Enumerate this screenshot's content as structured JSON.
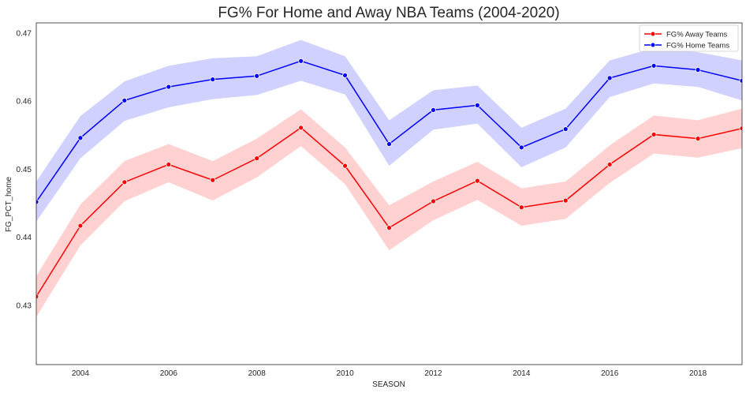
{
  "chart_data": {
    "type": "line",
    "title": "FG% For Home and Away NBA Teams (2004-2020)",
    "xlabel": "SEASON",
    "ylabel": "FG_PCT_home",
    "xlim": [
      2003,
      2019
    ],
    "ylim": [
      0.4213,
      0.4715
    ],
    "xticks": [
      2004,
      2006,
      2008,
      2010,
      2012,
      2014,
      2016,
      2018
    ],
    "yticks": [
      0.43,
      0.44,
      0.45,
      0.46,
      0.47
    ],
    "ytick_labels": [
      "0.43",
      "0.44",
      "0.45",
      "0.46",
      "0.47"
    ],
    "grid": false,
    "legend_position": "top-right",
    "x": [
      2003,
      2004,
      2005,
      2006,
      2007,
      2008,
      2009,
      2010,
      2011,
      2012,
      2013,
      2014,
      2015,
      2016,
      2017,
      2018,
      2019
    ],
    "series": [
      {
        "name": "FG% Away Teams",
        "color": "#ff0000",
        "band_color": "#ffcccc",
        "values": [
          0.4313,
          0.4417,
          0.4481,
          0.4507,
          0.4484,
          0.4516,
          0.4561,
          0.4505,
          0.4414,
          0.4453,
          0.4483,
          0.4444,
          0.4454,
          0.4507,
          0.4551,
          0.4545,
          0.456
        ],
        "ci_low": [
          0.4283,
          0.4388,
          0.4453,
          0.4481,
          0.4454,
          0.4488,
          0.4534,
          0.4478,
          0.4381,
          0.4425,
          0.4455,
          0.4417,
          0.4427,
          0.448,
          0.4523,
          0.4517,
          0.4531
        ],
        "ci_high": [
          0.4343,
          0.4448,
          0.4512,
          0.4537,
          0.4512,
          0.4545,
          0.4588,
          0.4532,
          0.4447,
          0.4482,
          0.4511,
          0.4472,
          0.4482,
          0.4535,
          0.4579,
          0.4572,
          0.4589
        ]
      },
      {
        "name": "FG% Home Teams",
        "color": "#0000ff",
        "band_color": "#ccccff",
        "values": [
          0.4452,
          0.4546,
          0.4601,
          0.4621,
          0.4632,
          0.4637,
          0.4659,
          0.4638,
          0.4537,
          0.4587,
          0.4594,
          0.4532,
          0.4559,
          0.4634,
          0.4652,
          0.4646,
          0.463
        ],
        "ci_low": [
          0.4423,
          0.4516,
          0.4571,
          0.4591,
          0.4603,
          0.4609,
          0.463,
          0.461,
          0.4505,
          0.4558,
          0.4567,
          0.4503,
          0.4532,
          0.4606,
          0.4626,
          0.4621,
          0.4601
        ],
        "ci_high": [
          0.4482,
          0.4578,
          0.4629,
          0.4652,
          0.4663,
          0.4666,
          0.469,
          0.4666,
          0.4572,
          0.4616,
          0.4623,
          0.4561,
          0.4589,
          0.466,
          0.4678,
          0.4672,
          0.466
        ]
      }
    ]
  }
}
